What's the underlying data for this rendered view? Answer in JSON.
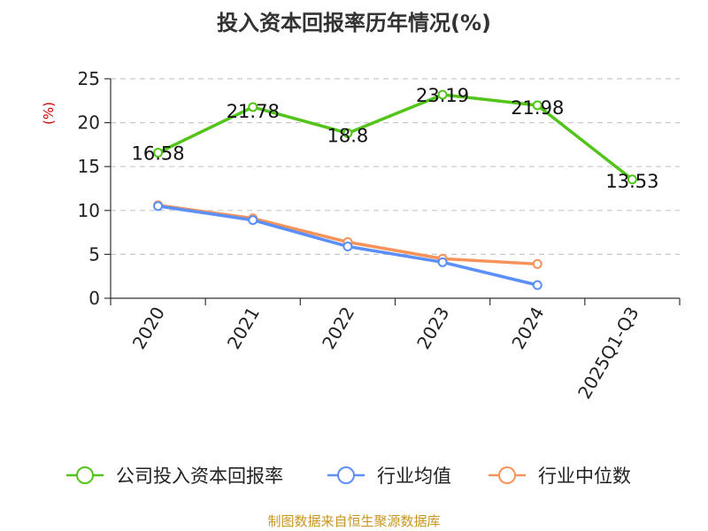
{
  "chart_data": {
    "type": "line",
    "title": "投入资本回报率历年情况(%)",
    "ylabel": "(%)",
    "xlabel": "",
    "categories": [
      "2020",
      "2021",
      "2022",
      "2023",
      "2024",
      "2025Q1-Q3"
    ],
    "ylim": [
      0,
      25
    ],
    "yticks": [
      "0",
      "5",
      "10",
      "15",
      "20",
      "25"
    ],
    "grid": true,
    "legend_position": "bottom",
    "series": [
      {
        "name": "公司投入资本回报率",
        "color": "#52c41a",
        "values": [
          16.58,
          21.78,
          18.8,
          23.19,
          21.98,
          13.53
        ],
        "labels": [
          "16.58",
          "21.78",
          "18.8",
          "23.19",
          "21.98",
          "13.53"
        ]
      },
      {
        "name": "行业均值",
        "color": "#5b8ff9",
        "values": [
          10.5,
          8.9,
          5.9,
          4.1,
          1.5,
          null
        ]
      },
      {
        "name": "行业中位数",
        "color": "#f6935a",
        "values": [
          10.6,
          9.1,
          6.4,
          4.5,
          3.9,
          null
        ]
      }
    ]
  },
  "footer": {
    "source": "制图数据来自恒生聚源数据库",
    "source_color": "#c8961e"
  },
  "colors": {
    "ylabel": "#cc0000",
    "grid": "#c8c8c8",
    "axis": "#333333"
  }
}
